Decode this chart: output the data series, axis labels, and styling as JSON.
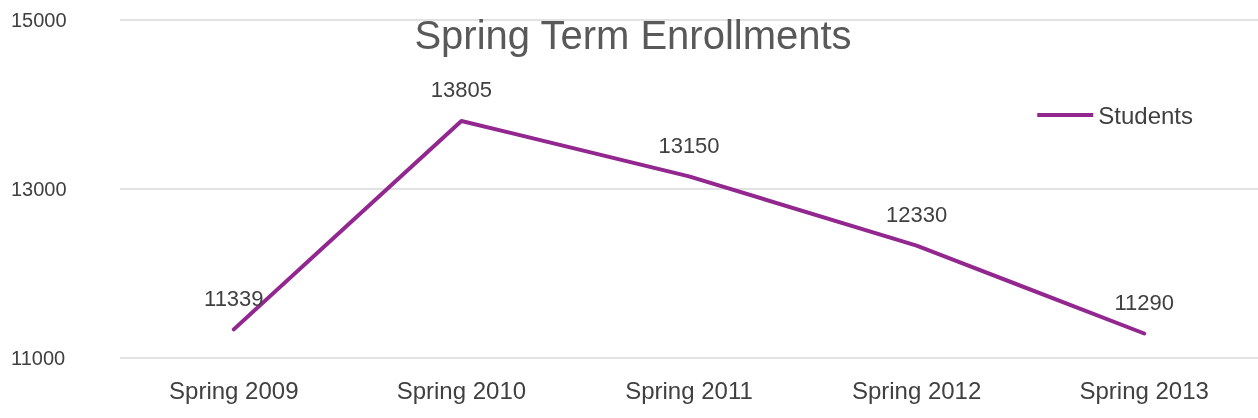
{
  "chart_data": {
    "type": "line",
    "title": "Spring Term Enrollments",
    "categories": [
      "Spring 2009",
      "Spring 2010",
      "Spring 2011",
      "Spring 2012",
      "Spring 2013"
    ],
    "series": [
      {
        "name": "Students",
        "color": "#92278f",
        "values": [
          11339,
          13805,
          13150,
          12330,
          11290
        ]
      }
    ],
    "ylim": [
      11000,
      15000
    ],
    "yticks": [
      11000,
      13000,
      15000
    ],
    "grid": "y",
    "legend": "top right",
    "data_labels": true,
    "marker": "none",
    "line_style": "solid"
  }
}
